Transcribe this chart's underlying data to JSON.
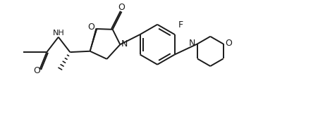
{
  "bg_color": "#ffffff",
  "line_color": "#1a1a1a",
  "line_width": 1.4,
  "font_size": 8.5,
  "figsize": [
    4.52,
    1.62
  ],
  "dpi": 100,
  "xlim": [
    0,
    9.5
  ],
  "ylim": [
    0,
    3.5
  ]
}
